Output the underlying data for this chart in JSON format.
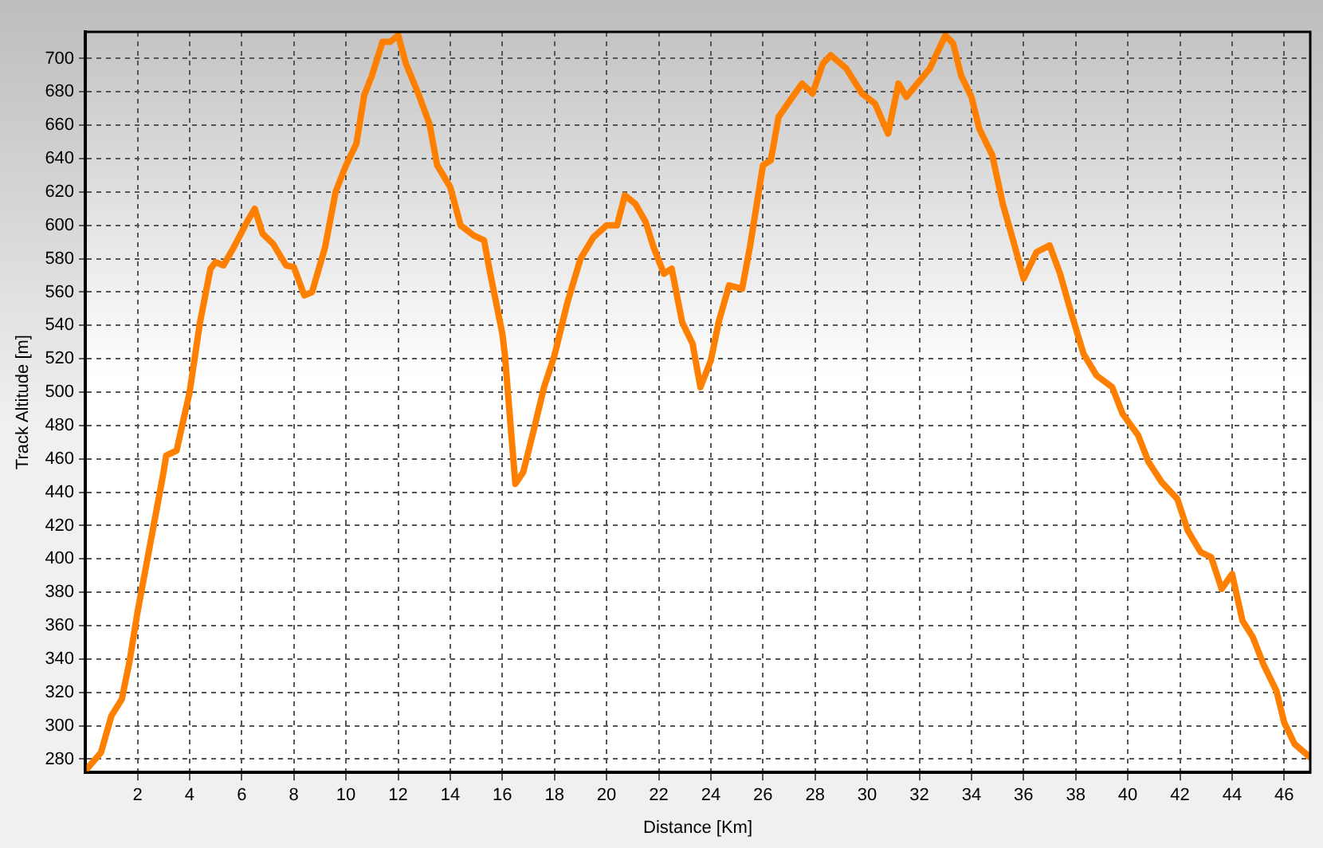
{
  "chart_data": {
    "type": "line",
    "xlabel": "Distance [Km]",
    "ylabel": "Track Altitude [m]",
    "x": [
      0,
      0.6,
      1.0,
      1.4,
      1.7,
      2.0,
      2.5,
      3.0,
      3.1,
      3.5,
      4.0,
      4.4,
      4.8,
      5.0,
      5.3,
      5.7,
      6.2,
      6.5,
      6.8,
      7.2,
      7.7,
      8.0,
      8.4,
      8.7,
      9.2,
      9.6,
      10.0,
      10.4,
      10.7,
      11.0,
      11.4,
      11.7,
      12.0,
      12.3,
      12.8,
      13.2,
      13.5,
      14.0,
      14.4,
      14.9,
      15.3,
      15.5,
      16.0,
      16.1,
      16.3,
      16.5,
      16.8,
      17.2,
      17.6,
      18.0,
      18.5,
      19.0,
      19.5,
      20.0,
      20.4,
      20.7,
      21.1,
      21.5,
      21.8,
      22.2,
      22.5,
      22.9,
      23.3,
      23.6,
      24.0,
      24.3,
      24.7,
      25.2,
      25.5,
      26.0,
      26.3,
      26.6,
      27.0,
      27.5,
      27.9,
      28.3,
      28.6,
      29.2,
      29.8,
      30.3,
      30.8,
      31.2,
      31.5,
      32.4,
      33.0,
      33.3,
      33.6,
      34.0,
      34.3,
      34.8,
      35.2,
      35.6,
      36.0,
      36.5,
      37.0,
      37.4,
      37.8,
      38.3,
      38.8,
      39.4,
      39.8,
      40.4,
      40.8,
      41.3,
      41.9,
      42.3,
      42.8,
      43.2,
      43.6,
      44.0,
      44.4,
      44.8,
      45.2,
      45.7,
      46.0,
      46.4,
      47.0
    ],
    "series": [
      {
        "values": [
          273,
          284,
          306,
          316,
          339,
          368,
          410,
          452,
          462,
          465,
          500,
          542,
          574,
          578,
          576,
          587,
          602,
          610,
          595,
          589,
          576,
          575,
          558,
          560,
          587,
          620,
          636,
          649,
          678,
          690,
          710,
          710,
          714,
          697,
          678,
          661,
          636,
          623,
          600,
          594,
          591,
          574,
          535,
          522,
          483,
          445,
          452,
          477,
          503,
          522,
          554,
          580,
          593,
          600,
          600,
          618,
          613,
          602,
          587,
          571,
          574,
          542,
          529,
          503,
          519,
          542,
          564,
          562,
          587,
          636,
          639,
          665,
          674,
          685,
          679,
          697,
          702,
          694,
          679,
          673,
          655,
          685,
          677,
          694,
          714,
          709,
          690,
          677,
          658,
          642,
          613,
          591,
          568,
          584,
          588,
          571,
          549,
          523,
          510,
          503,
          487,
          474,
          458,
          446,
          436,
          417,
          404,
          401,
          382,
          391,
          363,
          353,
          337,
          321,
          302,
          289,
          281
        ],
        "color": "#ff8000"
      }
    ],
    "xlim": [
      0,
      47
    ],
    "xticks": [
      2,
      4,
      6,
      8,
      10,
      12,
      14,
      16,
      18,
      20,
      22,
      24,
      26,
      28,
      30,
      32,
      34,
      36,
      38,
      40,
      42,
      44,
      46
    ],
    "ylim": [
      272,
      716
    ],
    "yticks": [
      280,
      300,
      320,
      340,
      360,
      380,
      400,
      420,
      440,
      460,
      480,
      500,
      520,
      540,
      560,
      580,
      600,
      620,
      640,
      660,
      680,
      700
    ],
    "grid": true,
    "legend": false,
    "marker": "none",
    "line_style": "solid"
  }
}
